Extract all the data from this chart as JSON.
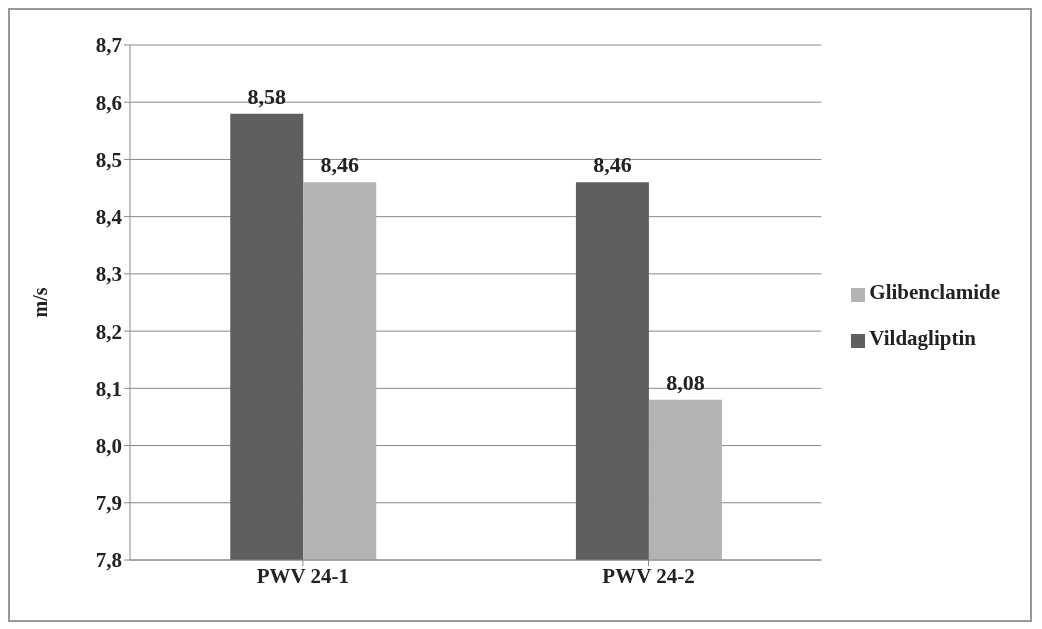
{
  "chart_data": {
    "type": "bar",
    "ylabel": "m/s",
    "categories": [
      "PWV 24-1",
      "PWV 24-2"
    ],
    "series": [
      {
        "name": "Vildagliptin",
        "color": "#5f5f5f",
        "values": [
          8.58,
          8.46
        ],
        "value_labels": [
          "8,58",
          "8,46"
        ]
      },
      {
        "name": "Glibenclamide",
        "color": "#b3b3b3",
        "values": [
          8.46,
          8.08
        ],
        "value_labels": [
          "8,46",
          "8,08"
        ]
      }
    ],
    "ylim": [
      7.8,
      8.7
    ],
    "yticks": [
      {
        "value": 7.8,
        "label": "7,8"
      },
      {
        "value": 7.9,
        "label": "7,9"
      },
      {
        "value": 8.0,
        "label": "8,0"
      },
      {
        "value": 8.1,
        "label": "8,1"
      },
      {
        "value": 8.2,
        "label": "8,2"
      },
      {
        "value": 8.3,
        "label": "8,3"
      },
      {
        "value": 8.4,
        "label": "8,4"
      },
      {
        "value": 8.5,
        "label": "8,5"
      },
      {
        "value": 8.6,
        "label": "8,6"
      },
      {
        "value": 8.7,
        "label": "8,7"
      }
    ],
    "grid": "y",
    "legend": "right"
  }
}
